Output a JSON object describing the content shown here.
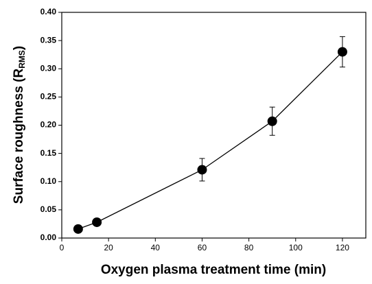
{
  "chart_data": {
    "type": "scatter",
    "xlabel": "Oxygen plasma treatment time (min)",
    "ylabel": [
      "Surface roughness (R",
      "RMS",
      ")"
    ],
    "x": [
      7,
      15,
      60,
      90,
      120
    ],
    "series": [
      {
        "color": "#000000",
        "values": [
          0.016,
          0.028,
          0.121,
          0.207,
          0.33
        ],
        "errors": [
          0.003,
          0.004,
          0.02,
          0.025,
          0.027
        ]
      }
    ],
    "xlim": [
      0,
      130
    ],
    "xticks": [
      0,
      20,
      40,
      60,
      80,
      100,
      120
    ],
    "ylim": [
      0,
      0.4
    ],
    "yticks": [
      {
        "value": 0,
        "label": "0.00"
      },
      {
        "value": 0.05,
        "label": "0.05"
      },
      {
        "value": 0.1,
        "label": "0.10"
      },
      {
        "value": 0.15,
        "label": "0.15"
      },
      {
        "value": 0.2,
        "label": "0.20"
      },
      {
        "value": 0.25,
        "label": "0.25"
      },
      {
        "value": 0.3,
        "label": "0.30"
      },
      {
        "value": 0.35,
        "label": "0.35"
      },
      {
        "value": 0.4,
        "label": "0.40"
      }
    ]
  }
}
